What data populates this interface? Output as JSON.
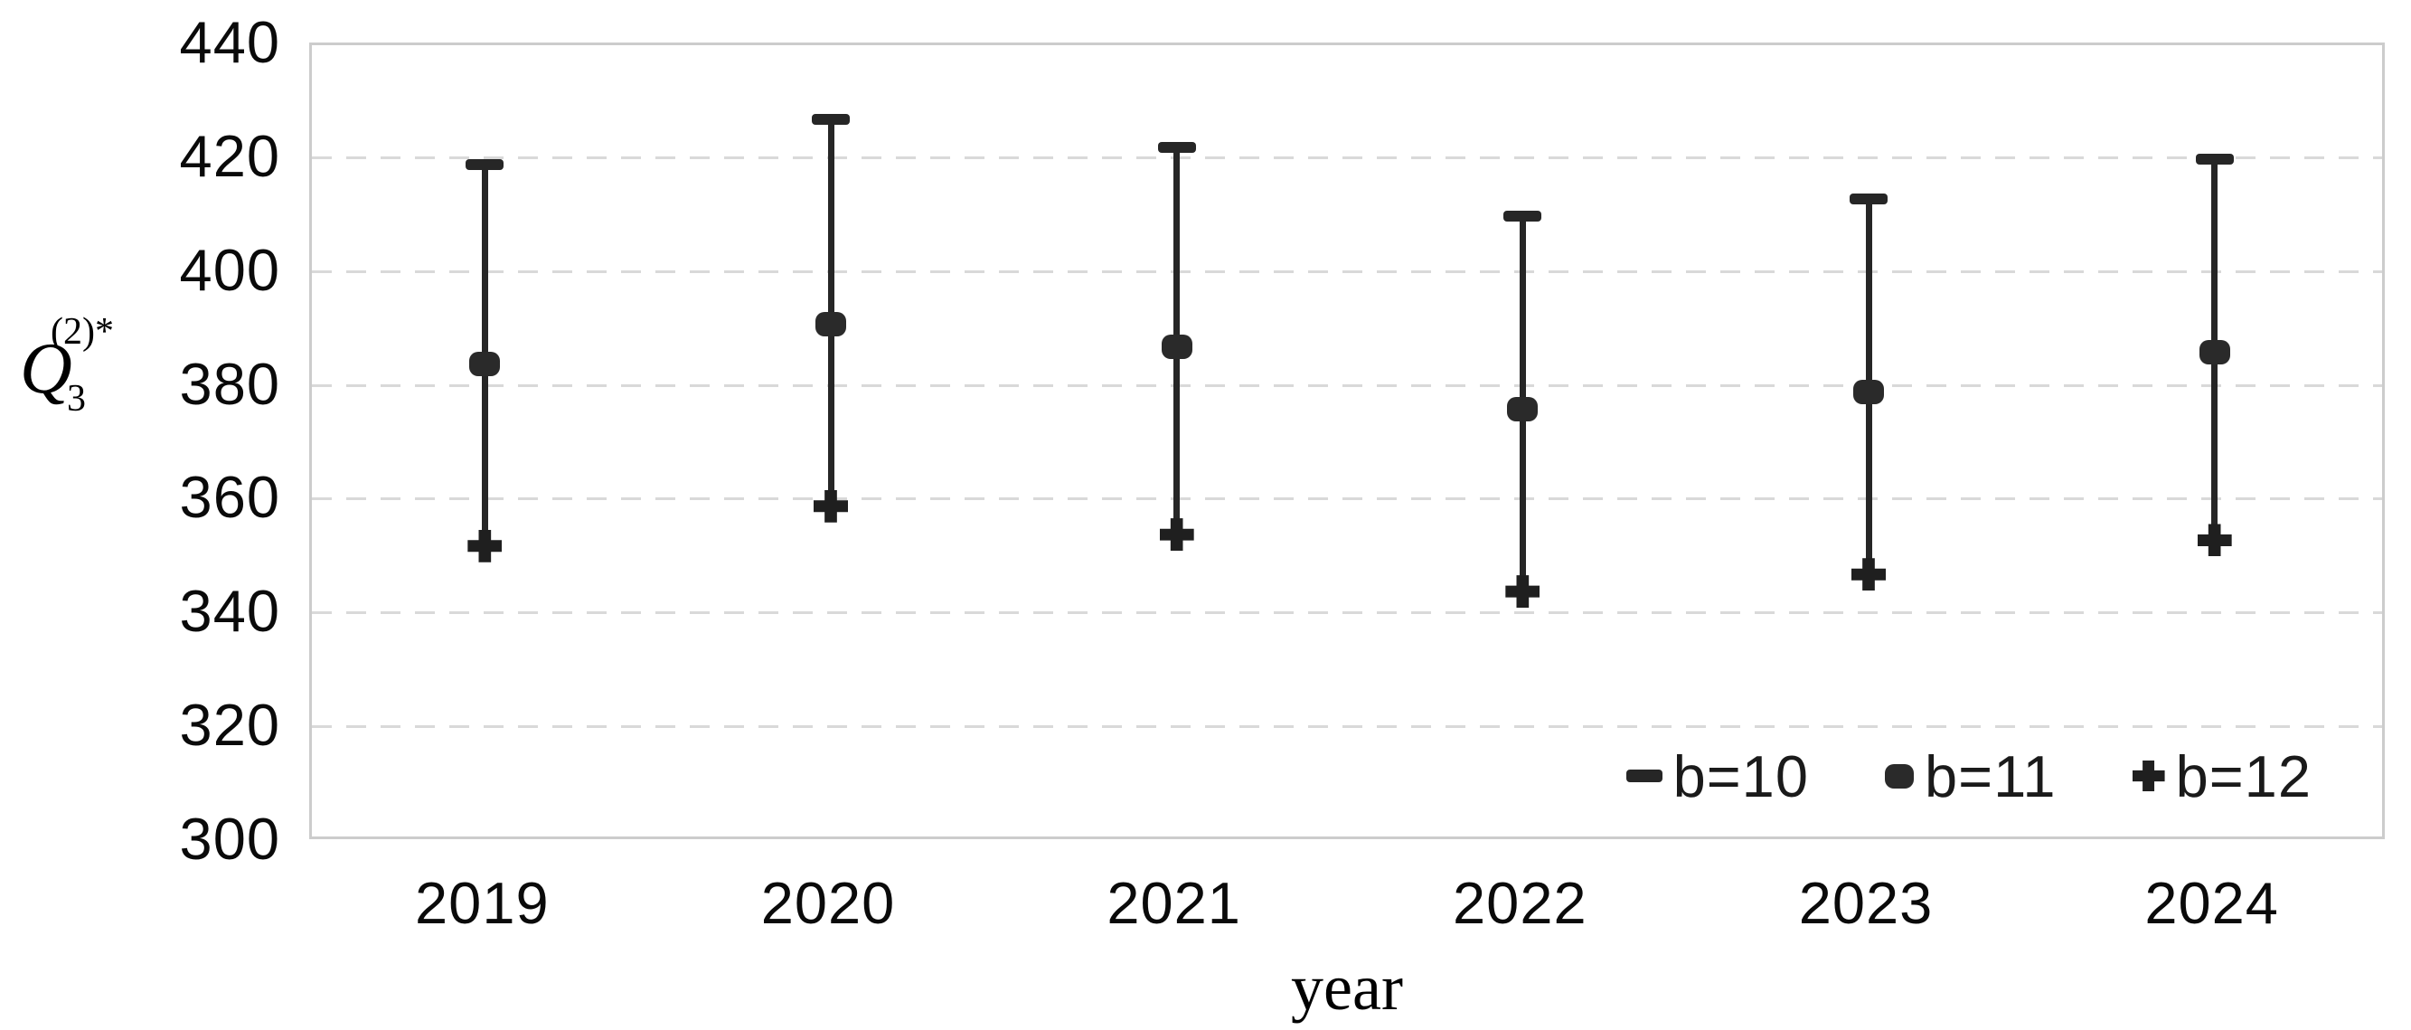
{
  "figure": {
    "y_axis_title": {
      "base": "Q",
      "sub": "3",
      "sup": "(2)*"
    },
    "x_axis_title": "year"
  },
  "chart_data": {
    "type": "scatter",
    "subtype": "high-low-error-bars",
    "title": "",
    "xlabel": "year",
    "ylabel": "Q_3^(2)*",
    "categories": [
      "2019",
      "2020",
      "2021",
      "2022",
      "2023",
      "2024"
    ],
    "series": [
      {
        "name": "b=10",
        "marker": "dash",
        "values": [
          419,
          427,
          422,
          410,
          413,
          420
        ]
      },
      {
        "name": "b=11",
        "marker": "circle",
        "values": [
          384,
          391,
          387,
          376,
          379,
          386
        ]
      },
      {
        "name": "b=12",
        "marker": "plus",
        "values": [
          352,
          359,
          354,
          344,
          347,
          353
        ]
      }
    ],
    "connector": "vertical line per category from b=12 value up to b=10 value",
    "ylim": [
      300,
      440
    ],
    "yticks": [
      300,
      320,
      340,
      360,
      380,
      400,
      420,
      440
    ],
    "grid": "horizontal dashed gridlines",
    "legend_position": "inside bottom-right",
    "colors": {
      "data": "#262626",
      "grid": "#d9d9d9",
      "frame": "#cccccc",
      "text": "#0a0a0a",
      "background": "#ffffff"
    }
  }
}
